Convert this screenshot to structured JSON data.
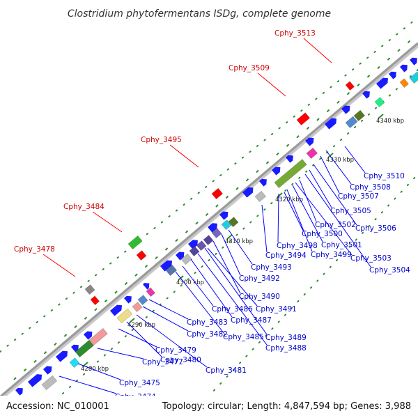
{
  "map": {
    "title": "Clostridium phytofermentans ISDg, complete genome",
    "accession": "Accession: NC_010001",
    "summary": "Topology: circular; Length: 4,847,594 bp; Genes: 3,988",
    "colors": {
      "background": "#ffffff",
      "backbone": "#9a9a9a",
      "ticks": "#2e8b2e",
      "reverse_label": "#cc0000",
      "forward_label": "#0000cc",
      "gene_blue": "#1a1aff"
    },
    "scale_labels": [
      "4280 kbp",
      "4290 kbp",
      "4300 kbp",
      "4310 kbp",
      "4320 kbp",
      "4330 kbp",
      "4340 kbp"
    ],
    "reverse_strand_labels": [
      "Cphy_3478",
      "Cphy_3484",
      "Cphy_3495",
      "Cphy_3509",
      "Cphy_3513"
    ],
    "forward_strand_labels": [
      "Cphy_3474",
      "Cphy_3475",
      "Cphy_3477",
      "Cphy_3479",
      "Cphy_3480",
      "Cphy_3481",
      "Cphy_3482",
      "Cphy_3483",
      "Cphy_3485",
      "Cphy_3486",
      "Cphy_3487",
      "Cphy_3488",
      "Cphy_3489",
      "Cphy_3490",
      "Cphy_3491",
      "Cphy_3492",
      "Cphy_3493",
      "Cphy_3494",
      "Cphy_3498",
      "Cphy_3499",
      "Cphy_3500",
      "Cphy_3501",
      "Cphy_3502",
      "Cphy_3503",
      "Cphy_3504",
      "Cphy_3505",
      "Cphy_3506",
      "Cphy_3507",
      "Cphy_3508",
      "Cphy_3510"
    ]
  }
}
